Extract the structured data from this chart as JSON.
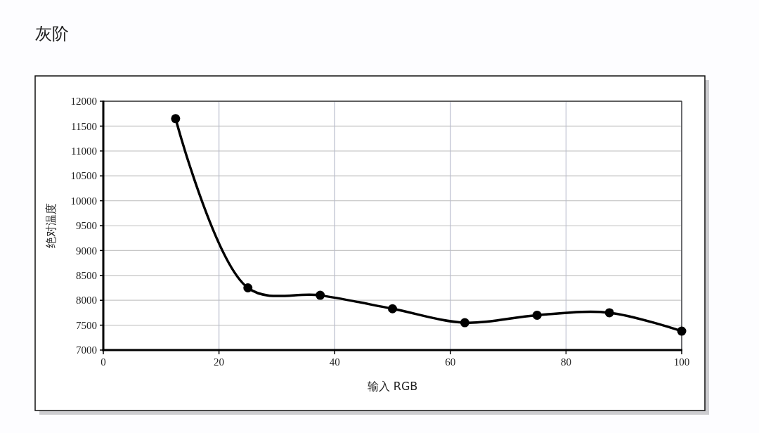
{
  "chart_data": {
    "type": "line",
    "title": "灰阶",
    "xlabel": "输入 RGB",
    "ylabel": "绝对温度",
    "x": [
      12.5,
      25,
      37.5,
      50,
      62.5,
      75,
      87.5,
      100
    ],
    "series": [
      {
        "color": "#000000",
        "values": [
          11650,
          8250,
          8100,
          7830,
          7550,
          7700,
          7750,
          7380
        ]
      }
    ],
    "xlim": [
      0,
      100
    ],
    "xticks": [
      0,
      20,
      40,
      60,
      80,
      100
    ],
    "ylim": [
      7000,
      12000
    ],
    "yticks": [
      7000,
      7500,
      8000,
      8500,
      9000,
      9500,
      10000,
      10500,
      11000,
      11500,
      12000
    ],
    "grid": true,
    "marker": "circle",
    "line_style": "solid"
  }
}
